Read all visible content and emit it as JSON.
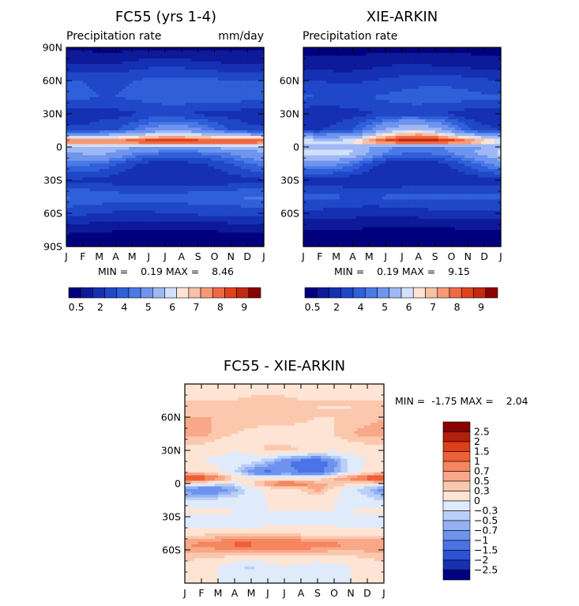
{
  "chart_data": {
    "type": "heatmap",
    "x_categories": [
      "J",
      "F",
      "M",
      "A",
      "M",
      "J",
      "J",
      "A",
      "S",
      "O",
      "N",
      "D",
      "J"
    ],
    "panels": [
      {
        "id": "fc55",
        "title": "FC55 (yrs 1-4)",
        "subtitle_left": "Precipitation rate",
        "subtitle_right": "mm/day",
        "y_ticks": [
          "90N",
          "60N",
          "30N",
          "0",
          "30S",
          "60S",
          "90S"
        ],
        "stats_text": "MIN =    0.19 MAX =    8.46",
        "colorbar_labels": [
          "0.5",
          "2",
          "4",
          "5",
          "6",
          "7",
          "8",
          "9"
        ],
        "rows": [
          {
            "lat": 90,
            "values": [
              0.4,
              0.4,
              0.3,
              0.3,
              0.3,
              0.3,
              0.3,
              0.3,
              0.3,
              0.3,
              0.4,
              0.4,
              0.4
            ]
          },
          {
            "lat": 75,
            "values": [
              1.0,
              1.0,
              1.0,
              1.0,
              1.2,
              1.3,
              1.4,
              1.3,
              1.2,
              1.1,
              1.0,
              1.0,
              1.0
            ]
          },
          {
            "lat": 60,
            "values": [
              2.0,
              2.0,
              1.9,
              1.9,
              2.0,
              2.1,
              2.2,
              2.2,
              2.1,
              2.1,
              2.0,
              2.0,
              2.0
            ]
          },
          {
            "lat": 45,
            "values": [
              2.2,
              2.1,
              2.0,
              2.0,
              2.1,
              2.2,
              2.3,
              2.4,
              2.3,
              2.4,
              2.3,
              2.2,
              2.2
            ]
          },
          {
            "lat": 30,
            "values": [
              1.2,
              1.2,
              1.3,
              1.3,
              1.4,
              1.6,
              1.6,
              1.5,
              1.4,
              1.3,
              1.3,
              1.2,
              1.2
            ]
          },
          {
            "lat": 15,
            "values": [
              1.6,
              1.6,
              1.8,
              2.0,
              2.5,
              3.2,
              3.6,
              3.6,
              3.3,
              2.6,
              2.0,
              1.7,
              1.6
            ]
          },
          {
            "lat": 5,
            "values": [
              7.8,
              7.6,
              7.4,
              7.5,
              7.8,
              8.2,
              8.4,
              8.3,
              8.1,
              7.9,
              7.9,
              7.9,
              7.8
            ]
          },
          {
            "lat": 0,
            "values": [
              4.5,
              4.4,
              4.3,
              4.2,
              4.2,
              4.0,
              4.0,
              4.1,
              4.2,
              4.3,
              4.4,
              4.5,
              4.5
            ]
          },
          {
            "lat": -5,
            "values": [
              4.0,
              4.2,
              4.4,
              4.0,
              3.2,
              2.8,
              2.6,
              2.5,
              2.6,
              2.8,
              3.1,
              3.6,
              4.0
            ]
          },
          {
            "lat": -15,
            "values": [
              2.8,
              2.7,
              2.5,
              2.1,
              1.6,
              1.3,
              1.2,
              1.3,
              1.4,
              1.6,
              2.0,
              2.4,
              2.8
            ]
          },
          {
            "lat": -30,
            "values": [
              1.4,
              1.4,
              1.3,
              1.2,
              1.1,
              1.0,
              1.0,
              1.0,
              1.0,
              1.1,
              1.2,
              1.3,
              1.4
            ]
          },
          {
            "lat": -45,
            "values": [
              2.6,
              2.5,
              2.4,
              2.3,
              2.2,
              2.2,
              2.3,
              2.3,
              2.4,
              2.4,
              2.5,
              2.6,
              2.6
            ]
          },
          {
            "lat": -60,
            "values": [
              1.6,
              1.6,
              1.5,
              1.4,
              1.4,
              1.4,
              1.5,
              1.5,
              1.6,
              1.6,
              1.6,
              1.6,
              1.6
            ]
          },
          {
            "lat": -75,
            "values": [
              0.6,
              0.6,
              0.6,
              0.5,
              0.5,
              0.5,
              0.5,
              0.5,
              0.5,
              0.5,
              0.6,
              0.6,
              0.6
            ]
          },
          {
            "lat": -90,
            "values": [
              0.2,
              0.2,
              0.2,
              0.2,
              0.2,
              0.2,
              0.2,
              0.2,
              0.2,
              0.2,
              0.2,
              0.2,
              0.2
            ]
          }
        ]
      },
      {
        "id": "xie",
        "title": "XIE-ARKIN",
        "subtitle_left": "Precipitation rate",
        "subtitle_right": "",
        "y_ticks": [
          "",
          "60N",
          "30N",
          "0",
          "30S",
          "60S",
          ""
        ],
        "stats_text": "MIN =    0.19 MAX =    9.15",
        "colorbar_labels": [
          "0.5",
          "2",
          "4",
          "5",
          "6",
          "7",
          "8",
          "9"
        ],
        "rows": [
          {
            "lat": 90,
            "values": [
              0.3,
              0.3,
              0.3,
              0.3,
              0.3,
              0.3,
              0.3,
              0.3,
              0.3,
              0.3,
              0.3,
              0.3,
              0.3
            ]
          },
          {
            "lat": 75,
            "values": [
              0.7,
              0.7,
              0.7,
              0.7,
              0.8,
              0.9,
              1.0,
              1.0,
              0.9,
              0.8,
              0.8,
              0.7,
              0.7
            ]
          },
          {
            "lat": 60,
            "values": [
              1.5,
              1.5,
              1.4,
              1.4,
              1.5,
              1.6,
              1.7,
              1.8,
              1.8,
              1.8,
              1.7,
              1.6,
              1.5
            ]
          },
          {
            "lat": 45,
            "values": [
              2.1,
              2.0,
              1.9,
              1.9,
              2.0,
              2.1,
              2.2,
              2.3,
              2.3,
              2.3,
              2.2,
              2.1,
              2.1
            ]
          },
          {
            "lat": 30,
            "values": [
              1.1,
              1.1,
              1.2,
              1.3,
              1.4,
              1.6,
              1.7,
              1.6,
              1.5,
              1.4,
              1.2,
              1.1,
              1.1
            ]
          },
          {
            "lat": 15,
            "values": [
              1.5,
              1.5,
              1.7,
              2.0,
              3.0,
              4.2,
              5.0,
              5.2,
              4.6,
              3.4,
              2.2,
              1.7,
              1.5
            ]
          },
          {
            "lat": 5,
            "values": [
              5.6,
              5.4,
              5.3,
              5.8,
              7.0,
              8.0,
              8.6,
              8.8,
              8.6,
              8.2,
              7.6,
              6.6,
              5.6
            ]
          },
          {
            "lat": 0,
            "values": [
              4.2,
              4.3,
              4.4,
              4.4,
              4.0,
              3.2,
              2.9,
              2.8,
              2.9,
              3.2,
              3.6,
              3.9,
              4.2
            ]
          },
          {
            "lat": -5,
            "values": [
              5.4,
              5.6,
              5.8,
              5.2,
              3.9,
              3.0,
              2.7,
              2.6,
              2.7,
              3.0,
              3.6,
              4.6,
              5.4
            ]
          },
          {
            "lat": -15,
            "values": [
              3.4,
              3.3,
              3.2,
              2.6,
              1.8,
              1.3,
              1.1,
              1.1,
              1.2,
              1.6,
              2.2,
              2.8,
              3.4
            ]
          },
          {
            "lat": -30,
            "values": [
              1.2,
              1.2,
              1.1,
              1.1,
              1.0,
              1.0,
              1.0,
              1.0,
              1.0,
              1.1,
              1.1,
              1.2,
              1.2
            ]
          },
          {
            "lat": -45,
            "values": [
              2.2,
              2.2,
              2.1,
              2.0,
              2.0,
              2.1,
              2.2,
              2.2,
              2.2,
              2.2,
              2.2,
              2.2,
              2.2
            ]
          },
          {
            "lat": -60,
            "values": [
              1.3,
              1.3,
              1.2,
              1.2,
              1.1,
              1.1,
              1.2,
              1.2,
              1.3,
              1.3,
              1.3,
              1.3,
              1.3
            ]
          },
          {
            "lat": -75,
            "values": [
              0.5,
              0.5,
              0.5,
              0.5,
              0.4,
              0.4,
              0.4,
              0.4,
              0.4,
              0.4,
              0.5,
              0.5,
              0.5
            ]
          },
          {
            "lat": -90,
            "values": [
              0.2,
              0.2,
              0.2,
              0.2,
              0.2,
              0.2,
              0.2,
              0.2,
              0.2,
              0.2,
              0.2,
              0.2,
              0.2
            ]
          }
        ]
      },
      {
        "id": "diff",
        "title": "FC55 - XIE-ARKIN",
        "subtitle_left": "",
        "subtitle_right": "",
        "y_ticks": [
          "",
          "60N",
          "30N",
          "0",
          "30S",
          "60S",
          ""
        ],
        "stats_text": "MIN =  -1.75 MAX =    2.04",
        "colorbar_labels": [
          "2.5",
          "2",
          "1.5",
          "1",
          "0.7",
          "0.5",
          "0.3",
          "0",
          "-0.3",
          "-0.5",
          "-0.7",
          "-1",
          "-1.5",
          "-2",
          "-2.5"
        ],
        "rows": [
          {
            "lat": 90,
            "values": [
              0.1,
              0.1,
              0.0,
              0.0,
              0.0,
              0.0,
              0.0,
              0.0,
              0.0,
              0.0,
              0.1,
              0.1,
              0.1
            ]
          },
          {
            "lat": 75,
            "values": [
              0.3,
              0.3,
              0.3,
              0.3,
              0.4,
              0.4,
              0.4,
              0.3,
              0.3,
              0.3,
              0.3,
              0.3,
              0.3
            ]
          },
          {
            "lat": 60,
            "values": [
              0.5,
              0.5,
              0.5,
              0.5,
              0.5,
              0.5,
              0.5,
              0.4,
              0.3,
              0.3,
              0.3,
              0.4,
              0.5
            ]
          },
          {
            "lat": 45,
            "values": [
              0.6,
              0.6,
              0.4,
              0.3,
              0.2,
              0.1,
              0.1,
              0.1,
              0.1,
              0.3,
              0.5,
              0.6,
              0.6
            ]
          },
          {
            "lat": 30,
            "values": [
              0.1,
              0.1,
              0.1,
              0.0,
              0.1,
              0.4,
              0.4,
              0.3,
              0.2,
              0.1,
              0.1,
              0.1,
              0.1
            ]
          },
          {
            "lat": 20,
            "values": [
              0.1,
              0.0,
              -0.1,
              -0.1,
              -0.2,
              -0.5,
              -0.9,
              -1.2,
              -1.3,
              -0.8,
              -0.2,
              0.0,
              0.1
            ]
          },
          {
            "lat": 10,
            "values": [
              0.2,
              0.3,
              0.1,
              -0.3,
              -0.9,
              -1.1,
              -0.9,
              -1.0,
              -1.2,
              -0.7,
              -0.2,
              0.2,
              0.2
            ]
          },
          {
            "lat": 5,
            "values": [
              1.6,
              1.4,
              0.9,
              0.4,
              0.1,
              0.0,
              0.0,
              0.0,
              0.1,
              0.5,
              0.8,
              1.3,
              1.6
            ]
          },
          {
            "lat": 0,
            "values": [
              0.2,
              0.1,
              -0.1,
              -0.2,
              0.3,
              0.8,
              1.0,
              0.9,
              0.6,
              0.5,
              0.3,
              0.2,
              0.2
            ]
          },
          {
            "lat": -5,
            "values": [
              -0.9,
              -1.0,
              -1.0,
              -0.6,
              -0.2,
              0.1,
              0.2,
              0.3,
              0.6,
              0.2,
              -0.2,
              -0.5,
              -0.9
            ]
          },
          {
            "lat": -15,
            "values": [
              -0.3,
              -0.3,
              -0.2,
              -0.2,
              -0.1,
              0.0,
              0.1,
              0.1,
              0.1,
              0.0,
              -0.1,
              -0.2,
              -0.3
            ]
          },
          {
            "lat": -25,
            "values": [
              0.1,
              0.1,
              0.1,
              0.0,
              0.0,
              0.0,
              0.0,
              0.0,
              0.0,
              0.0,
              0.0,
              0.1,
              0.1
            ]
          },
          {
            "lat": -35,
            "values": [
              -0.2,
              -0.2,
              -0.2,
              -0.2,
              -0.2,
              -0.1,
              -0.1,
              -0.1,
              -0.1,
              -0.1,
              -0.2,
              -0.2,
              -0.2
            ]
          },
          {
            "lat": -45,
            "values": [
              0.2,
              0.2,
              0.3,
              0.3,
              0.3,
              0.2,
              0.2,
              0.2,
              0.2,
              0.2,
              0.2,
              0.2,
              0.2
            ]
          },
          {
            "lat": -55,
            "values": [
              0.7,
              0.8,
              0.9,
              1.1,
              1.1,
              1.0,
              1.0,
              1.0,
              0.9,
              0.8,
              0.7,
              0.7,
              0.7
            ]
          },
          {
            "lat": -65,
            "values": [
              0.4,
              0.4,
              0.4,
              0.3,
              0.3,
              0.3,
              0.3,
              0.3,
              0.3,
              0.3,
              0.3,
              0.4,
              0.4
            ]
          },
          {
            "lat": -75,
            "values": [
              0.2,
              0.1,
              0.0,
              -0.2,
              -0.4,
              -0.1,
              0.0,
              -0.1,
              -0.2,
              -0.1,
              0.0,
              0.1,
              0.2
            ]
          },
          {
            "lat": -90,
            "values": [
              0.0,
              0.0,
              0.0,
              0.0,
              0.0,
              0.0,
              0.0,
              0.0,
              0.0,
              0.0,
              0.0,
              0.0,
              0.0
            ]
          }
        ]
      }
    ],
    "abs_levels": [
      0.5,
      1,
      1.5,
      2,
      2.5,
      3,
      4,
      5,
      5.5,
      6,
      6.5,
      7,
      7.5,
      8,
      9
    ],
    "abs_colors": [
      "#00007f",
      "#0d1a99",
      "#1530b3",
      "#1f47c8",
      "#2f5fd9",
      "#4a78e6",
      "#6f94ee",
      "#9fb8f5",
      "#d2e0fa",
      "#fde4d4",
      "#f8c0a4",
      "#f69a76",
      "#ef6a44",
      "#e0421d",
      "#c22a10",
      "#8b0000"
    ],
    "diff_levels": [
      -2.5,
      -2,
      -1.5,
      -1,
      -0.7,
      -0.5,
      -0.3,
      0,
      0.3,
      0.5,
      0.7,
      1,
      1.5,
      2,
      2.5
    ],
    "diff_colors": [
      "#00007f",
      "#1530b3",
      "#2d52d6",
      "#4b73e6",
      "#6d93ee",
      "#93b1f3",
      "#b9cff7",
      "#dfeafb",
      "#fde4d4",
      "#fbc8ae",
      "#f8a888",
      "#f58660",
      "#ee6036",
      "#de3e18",
      "#b3200b",
      "#8b0000"
    ]
  }
}
